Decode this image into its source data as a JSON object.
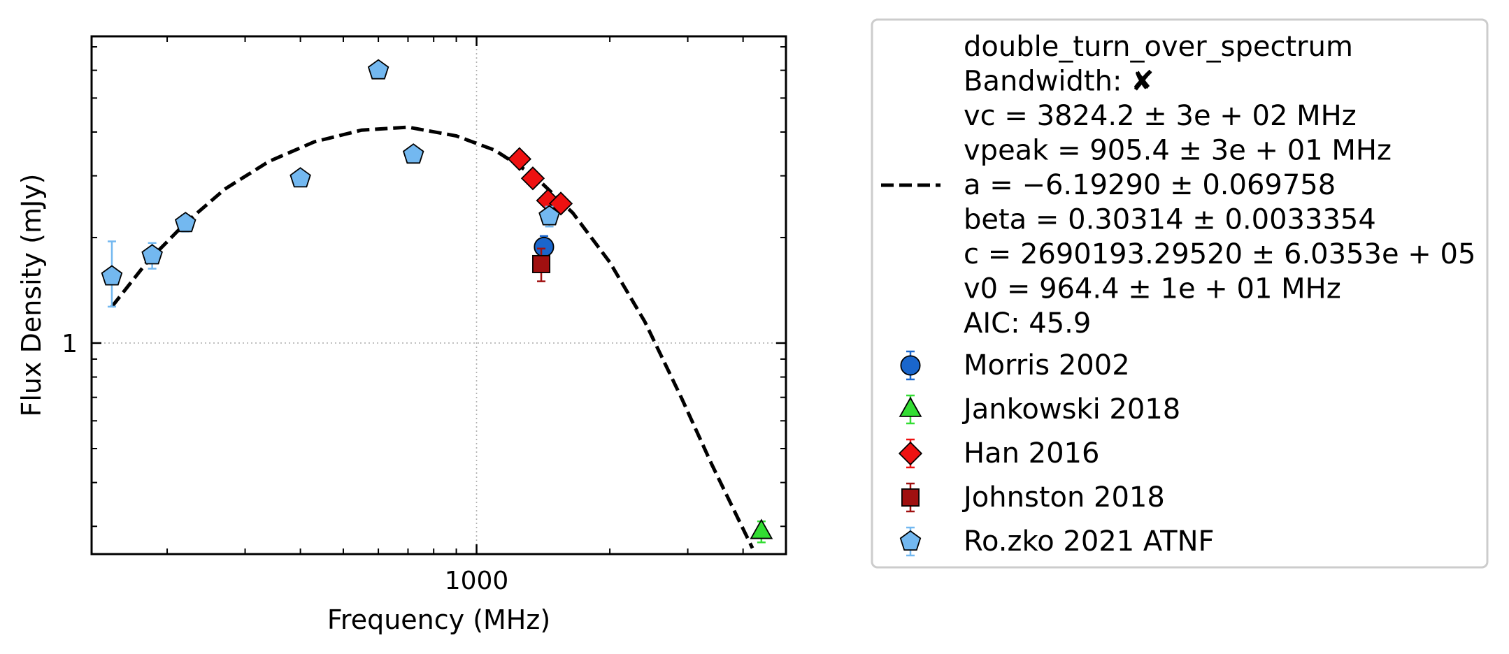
{
  "chart_data": {
    "type": "scatter",
    "xlabel": "Frequency (MHz)",
    "ylabel": "Flux Density (mJy)",
    "x_scale": "log",
    "y_scale": "log",
    "xlim": [
      135,
      5000
    ],
    "ylim": [
      0.25,
      7.5
    ],
    "x_ticks": [
      {
        "value": 1000,
        "label": "1000"
      }
    ],
    "y_ticks": [
      {
        "value": 1,
        "label": "1"
      }
    ],
    "grid": true,
    "legend_placement": "outside-right",
    "fit": {
      "name": "double_turn_over_spectrum",
      "legend_lines": [
        "double_turn_over_spectrum",
        "Bandwidth: ✘",
        "vc = 3824.2 ± 3e + 02 MHz",
        "vpeak = 905.4 ± 3e + 01 MHz",
        "a = −6.19290 ± 0.069758",
        "beta = 0.30314 ± 0.0033354",
        "c = 2690193.29520 ± 6.0353e + 05",
        "v0 = 964.4 ± 1e + 01 MHz",
        "AIC: 45.9"
      ],
      "style": "dashed",
      "color": "#000000",
      "curve": [
        {
          "x": 150,
          "y": 1.27
        },
        {
          "x": 180,
          "y": 1.7
        },
        {
          "x": 220,
          "y": 2.2
        },
        {
          "x": 270,
          "y": 2.75
        },
        {
          "x": 340,
          "y": 3.3
        },
        {
          "x": 430,
          "y": 3.75
        },
        {
          "x": 550,
          "y": 4.05
        },
        {
          "x": 700,
          "y": 4.13
        },
        {
          "x": 900,
          "y": 3.9
        },
        {
          "x": 1100,
          "y": 3.55
        },
        {
          "x": 1350,
          "y": 3.0
        },
        {
          "x": 1650,
          "y": 2.35
        },
        {
          "x": 2000,
          "y": 1.7
        },
        {
          "x": 2400,
          "y": 1.15
        },
        {
          "x": 2900,
          "y": 0.7
        },
        {
          "x": 3400,
          "y": 0.45
        },
        {
          "x": 3900,
          "y": 0.315
        },
        {
          "x": 4200,
          "y": 0.26
        }
      ]
    },
    "series": [
      {
        "name": "Morris 2002",
        "marker": "circle",
        "color": "#1a66cc",
        "edge": "#000000",
        "points": [
          {
            "x": 1420,
            "y": 1.88,
            "yerr": [
              1.72,
              2.02
            ]
          }
        ]
      },
      {
        "name": "Jankowski 2018",
        "marker": "triangle",
        "color": "#33dd33",
        "edge": "#000000",
        "points": [
          {
            "x": 4400,
            "y": 0.29,
            "yerr": [
              0.27,
              0.31
            ]
          }
        ]
      },
      {
        "name": "Han 2016",
        "marker": "diamond",
        "color": "#ee1111",
        "edge": "#000000",
        "points": [
          {
            "x": 1250,
            "y": 3.35,
            "yerr": [
              3.3,
              3.4
            ]
          },
          {
            "x": 1340,
            "y": 2.95,
            "yerr": [
              2.9,
              3.0
            ]
          },
          {
            "x": 1450,
            "y": 2.55,
            "yerr": [
              2.5,
              2.6
            ]
          },
          {
            "x": 1550,
            "y": 2.5,
            "yerr": [
              2.45,
              2.55
            ]
          }
        ]
      },
      {
        "name": "Johnston 2018",
        "marker": "square",
        "color": "#a01010",
        "edge": "#000000",
        "points": [
          {
            "x": 1400,
            "y": 1.68,
            "yerr": [
              1.5,
              1.86
            ]
          }
        ]
      },
      {
        "name": "Ro.zko 2021 ATNF",
        "marker": "pentagon",
        "color": "#73b8f0",
        "edge": "#000000",
        "points": [
          {
            "x": 150,
            "y": 1.55,
            "yerr": [
              1.27,
              1.95
            ]
          },
          {
            "x": 185,
            "y": 1.78,
            "yerr": [
              1.63,
              1.93
            ]
          },
          {
            "x": 220,
            "y": 2.2,
            "yerr": [
              2.08,
              2.32
            ]
          },
          {
            "x": 400,
            "y": 2.95,
            "yerr": [
              2.85,
              3.05
            ]
          },
          {
            "x": 600,
            "y": 6.0,
            "yerr": [
              5.75,
              6.25
            ]
          },
          {
            "x": 720,
            "y": 3.45,
            "yerr": [
              3.3,
              3.6
            ]
          },
          {
            "x": 1460,
            "y": 2.3,
            "yerr": [
              2.15,
              2.45
            ]
          }
        ]
      }
    ]
  }
}
